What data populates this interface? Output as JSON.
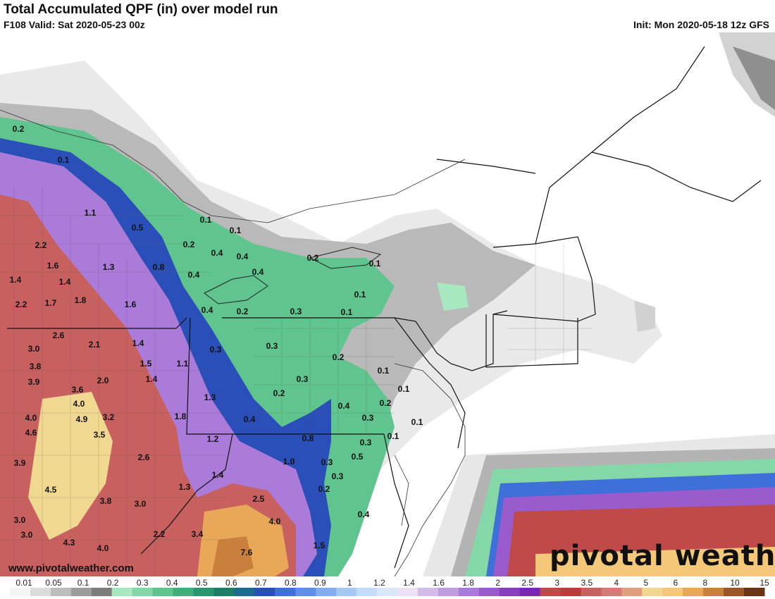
{
  "header": {
    "title": "Total Accumulated QPF (in) over model run",
    "valid": "F108 Valid: Sat 2020-05-23 00z",
    "init": "Init: Mon 2020-05-18 12z GFS"
  },
  "watermark": {
    "website": "www.pivotalweather.com",
    "brand": "pivotal weather"
  },
  "colorbar": {
    "labels": [
      "0.01",
      "0.05",
      "0.1",
      "0.2",
      "0.3",
      "0.4",
      "0.5",
      "0.6",
      "0.7",
      "0.8",
      "0.9",
      "1",
      "1.2",
      "1.4",
      "1.6",
      "1.8",
      "2",
      "2.5",
      "3",
      "3.5",
      "4",
      "5",
      "6",
      "8",
      "10",
      "15"
    ],
    "colors": [
      "#f4f4f4",
      "#dcdcdc",
      "#bdbdbd",
      "#9c9c9c",
      "#7c7c7c",
      "#a8e8c0",
      "#84d7a6",
      "#5fc48e",
      "#3fae7a",
      "#2a9670",
      "#1e7d66",
      "#1c6b8f",
      "#2b4fb8",
      "#3f6fd8",
      "#5f8fe8",
      "#84acf0",
      "#a8c8f4",
      "#c4dcf8",
      "#d8e8fb",
      "#ece2f6",
      "#d4bce8",
      "#bf9be0",
      "#aa7bd8",
      "#9a5ccc",
      "#8a3fc0",
      "#7a28b4",
      "#c04a4a",
      "#b83c3c",
      "#c86060",
      "#d87a78",
      "#e0a080",
      "#f0d890",
      "#f4c878",
      "#e8a858",
      "#c8803c",
      "#9a5628",
      "#6a3418"
    ]
  },
  "map_labels": [
    {
      "t": "0.2",
      "v": "value"
    },
    {
      "t": "0.1",
      "v": "value"
    },
    {
      "t": "1.1",
      "v": "value"
    },
    {
      "t": "0.5",
      "v": "value"
    },
    {
      "t": "0.1",
      "v": "value"
    },
    {
      "t": "0.1",
      "v": "value"
    },
    {
      "t": "2.2",
      "v": "value"
    },
    {
      "t": "0.2",
      "v": "value"
    },
    {
      "t": "0.4",
      "v": "value"
    },
    {
      "t": "0.4",
      "v": "value"
    },
    {
      "t": "0.2",
      "v": "value"
    },
    {
      "t": "0.1",
      "v": "value"
    },
    {
      "t": "1.6",
      "v": "value"
    },
    {
      "t": "1.3",
      "v": "value"
    },
    {
      "t": "0.8",
      "v": "value"
    },
    {
      "t": "0.4",
      "v": "value"
    },
    {
      "t": "0.4",
      "v": "value"
    },
    {
      "t": "1.4",
      "v": "value"
    },
    {
      "t": "1.4",
      "v": "value"
    },
    {
      "t": "0.1",
      "v": "value"
    },
    {
      "t": "2.2",
      "v": "value"
    },
    {
      "t": "1.7",
      "v": "value"
    },
    {
      "t": "1.8",
      "v": "value"
    },
    {
      "t": "1.6",
      "v": "value"
    },
    {
      "t": "0.4",
      "v": "value"
    },
    {
      "t": "0.2",
      "v": "value"
    },
    {
      "t": "0.3",
      "v": "value"
    },
    {
      "t": "0.1",
      "v": "value"
    },
    {
      "t": "2.6",
      "v": "value"
    },
    {
      "t": "2.1",
      "v": "value"
    },
    {
      "t": "1.4",
      "v": "value"
    },
    {
      "t": "3.0",
      "v": "value"
    },
    {
      "t": "0.3",
      "v": "value"
    },
    {
      "t": "0.3",
      "v": "value"
    },
    {
      "t": "0.2",
      "v": "value"
    },
    {
      "t": "3.8",
      "v": "value"
    },
    {
      "t": "1.5",
      "v": "value"
    },
    {
      "t": "1.1",
      "v": "value"
    },
    {
      "t": "0.1",
      "v": "value"
    },
    {
      "t": "3.9",
      "v": "value"
    },
    {
      "t": "2.0",
      "v": "value"
    },
    {
      "t": "1.4",
      "v": "value"
    },
    {
      "t": "0.3",
      "v": "value"
    },
    {
      "t": "3.6",
      "v": "value"
    },
    {
      "t": "0.2",
      "v": "value"
    },
    {
      "t": "0.1",
      "v": "value"
    },
    {
      "t": "4.0",
      "v": "value"
    },
    {
      "t": "1.3",
      "v": "value"
    },
    {
      "t": "0.4",
      "v": "value"
    },
    {
      "t": "0.2",
      "v": "value"
    },
    {
      "t": "4.0",
      "v": "value"
    },
    {
      "t": "4.9",
      "v": "value"
    },
    {
      "t": "3.2",
      "v": "value"
    },
    {
      "t": "1.8",
      "v": "value"
    },
    {
      "t": "0.4",
      "v": "value"
    },
    {
      "t": "0.3",
      "v": "value"
    },
    {
      "t": "0.1",
      "v": "value"
    },
    {
      "t": "4.6",
      "v": "value"
    },
    {
      "t": "3.5",
      "v": "value"
    },
    {
      "t": "1.2",
      "v": "value"
    },
    {
      "t": "0.8",
      "v": "value"
    },
    {
      "t": "0.1",
      "v": "value"
    },
    {
      "t": "0.3",
      "v": "value"
    },
    {
      "t": "2.6",
      "v": "value"
    },
    {
      "t": "1.0",
      "v": "value"
    },
    {
      "t": "0.3",
      "v": "value"
    },
    {
      "t": "0.5",
      "v": "value"
    },
    {
      "t": "3.9",
      "v": "value"
    },
    {
      "t": "1.4",
      "v": "value"
    },
    {
      "t": "0.3",
      "v": "value"
    },
    {
      "t": "4.5",
      "v": "value"
    },
    {
      "t": "1.3",
      "v": "value"
    },
    {
      "t": "0.2",
      "v": "value"
    },
    {
      "t": "3.8",
      "v": "value"
    },
    {
      "t": "3.0",
      "v": "value"
    },
    {
      "t": "2.5",
      "v": "value"
    },
    {
      "t": "0.4",
      "v": "value"
    },
    {
      "t": "3.0",
      "v": "value"
    },
    {
      "t": "4.0",
      "v": "value"
    },
    {
      "t": "3.0",
      "v": "value"
    },
    {
      "t": "2.2",
      "v": "value"
    },
    {
      "t": "3.4",
      "v": "value"
    },
    {
      "t": "4.3",
      "v": "value"
    },
    {
      "t": "4.0",
      "v": "value"
    },
    {
      "t": "7.6",
      "v": "value"
    },
    {
      "t": "1.5",
      "v": "value"
    }
  ]
}
